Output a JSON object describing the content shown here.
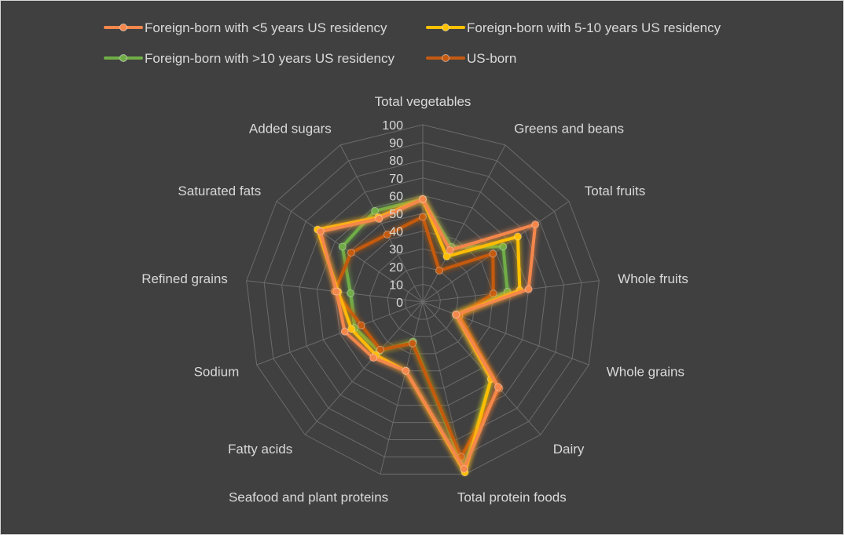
{
  "chart_data": {
    "type": "radar",
    "title": "",
    "categories": [
      "Total vegetables",
      "Greens and beans",
      "Total fruits",
      "Whole fruits",
      "Whole grains",
      "Dairy",
      "Total protein foods",
      "Seafood and plant proteins",
      "Fatty acids",
      "Sodium",
      "Refined grains",
      "Saturated fats",
      "Added sugars"
    ],
    "rmin": 0,
    "rmax": 100,
    "ticks": [
      0,
      10,
      20,
      30,
      40,
      50,
      60,
      70,
      80,
      90,
      100
    ],
    "grid": true,
    "legend_position": "top",
    "series": [
      {
        "name": "Foreign-born with <5 years US residency",
        "color": "#f4874b",
        "values": [
          58,
          33,
          77,
          60,
          20,
          64,
          97,
          40,
          42,
          47,
          49,
          70,
          53
        ]
      },
      {
        "name": "Foreign-born with 5-10 years US residency",
        "color": "#ffc000",
        "values": [
          58,
          29,
          65,
          55,
          20,
          58,
          99,
          40,
          40,
          43,
          48,
          72,
          54
        ]
      },
      {
        "name": "Foreign-born with >10 years US residency",
        "color": "#70ad47",
        "values": [
          58,
          35,
          55,
          48,
          20,
          58,
          97,
          23,
          37,
          41,
          41,
          55,
          58
        ]
      },
      {
        "name": "US-born",
        "color": "#c55a11",
        "values": [
          48,
          20,
          48,
          40,
          22,
          65,
          90,
          24,
          36,
          37,
          50,
          49,
          43
        ]
      }
    ]
  }
}
